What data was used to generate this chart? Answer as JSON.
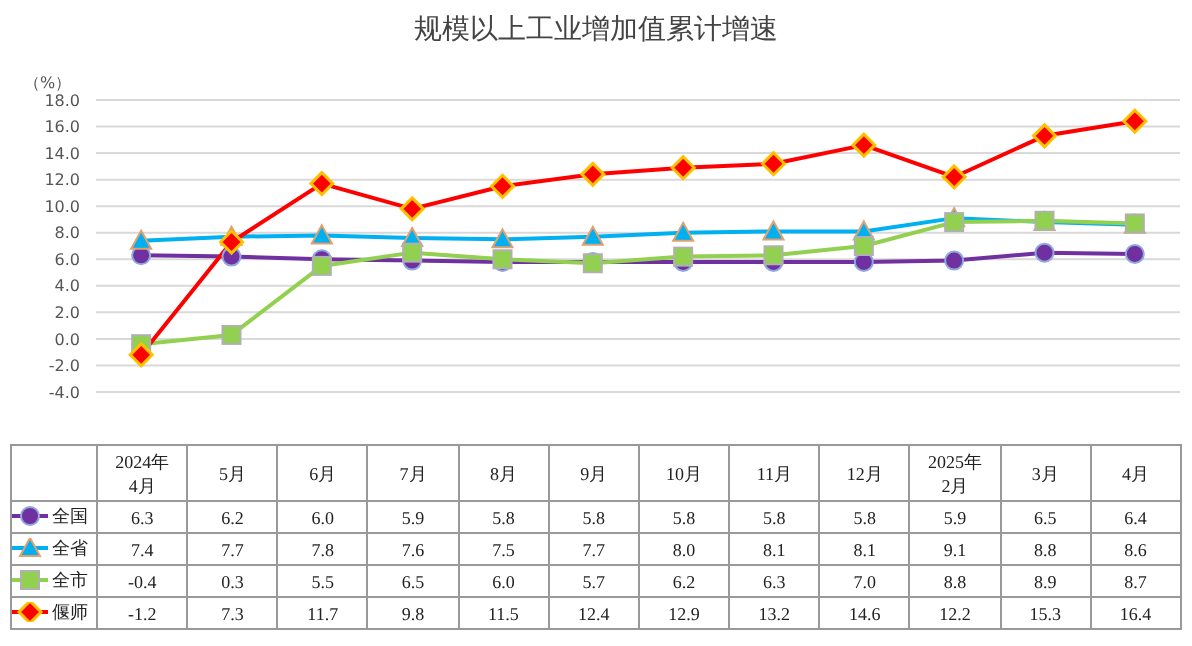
{
  "chart_data": {
    "type": "line",
    "title": "规模以上工业增加值累计增速",
    "ylabel": "（%）",
    "categories": [
      "2024年\n4月",
      "5月",
      "6月",
      "7月",
      "8月",
      "9月",
      "10月",
      "11月",
      "12月",
      "2025年\n2月",
      "3月",
      "4月"
    ],
    "series": [
      {
        "name": "全国",
        "color": "#7030a0",
        "marker": "circle",
        "values": [
          6.3,
          6.2,
          6.0,
          5.9,
          5.8,
          5.8,
          5.8,
          5.8,
          5.8,
          5.9,
          6.5,
          6.4
        ],
        "value_labels": [
          "6.3",
          "6.2",
          "6.0",
          "5.9",
          "5.8",
          "5.8",
          "5.8",
          "5.8",
          "5.8",
          "5.9",
          "6.5",
          "6.4"
        ]
      },
      {
        "name": "全省",
        "color": "#00b0f0",
        "marker": "triangle",
        "values": [
          7.4,
          7.7,
          7.8,
          7.6,
          7.5,
          7.7,
          8.0,
          8.1,
          8.1,
          9.1,
          8.8,
          8.6
        ],
        "value_labels": [
          "7.4",
          "7.7",
          "7.8",
          "7.6",
          "7.5",
          "7.7",
          "8.0",
          "8.1",
          "8.1",
          "9.1",
          "8.8",
          "8.6"
        ]
      },
      {
        "name": "全市",
        "color": "#92d050",
        "marker": "square",
        "values": [
          -0.4,
          0.3,
          5.5,
          6.5,
          6.0,
          5.7,
          6.2,
          6.3,
          7.0,
          8.8,
          8.9,
          8.7
        ],
        "value_labels": [
          "-0.4",
          "0.3",
          "5.5",
          "6.5",
          "6.0",
          "5.7",
          "6.2",
          "6.3",
          "7.0",
          "8.8",
          "8.9",
          "8.7"
        ]
      },
      {
        "name": "偃师",
        "color": "#ff0000",
        "marker": "diamond",
        "values": [
          -1.2,
          7.3,
          11.7,
          9.8,
          11.5,
          12.4,
          12.9,
          13.2,
          14.6,
          12.2,
          15.3,
          16.4
        ],
        "value_labels": [
          "-1.2",
          "7.3",
          "11.7",
          "9.8",
          "11.5",
          "12.4",
          "12.9",
          "13.2",
          "14.6",
          "12.2",
          "15.3",
          "16.4"
        ]
      }
    ],
    "ylim": [
      -4,
      18
    ],
    "yticks": [
      {
        "value": -4,
        "label": "-4.0"
      },
      {
        "value": -2,
        "label": "-2.0"
      },
      {
        "value": 0,
        "label": "0.0"
      },
      {
        "value": 2,
        "label": "2.0"
      },
      {
        "value": 4,
        "label": "4.0"
      },
      {
        "value": 6,
        "label": "6.0"
      },
      {
        "value": 8,
        "label": "8.0"
      },
      {
        "value": 10,
        "label": "10.0"
      },
      {
        "value": 12,
        "label": "12.0"
      },
      {
        "value": 14,
        "label": "14.0"
      },
      {
        "value": 16,
        "label": "16.0"
      },
      {
        "value": 18,
        "label": "18.0"
      }
    ],
    "grid": "y",
    "legend": "bottom",
    "line_style": "solid"
  }
}
